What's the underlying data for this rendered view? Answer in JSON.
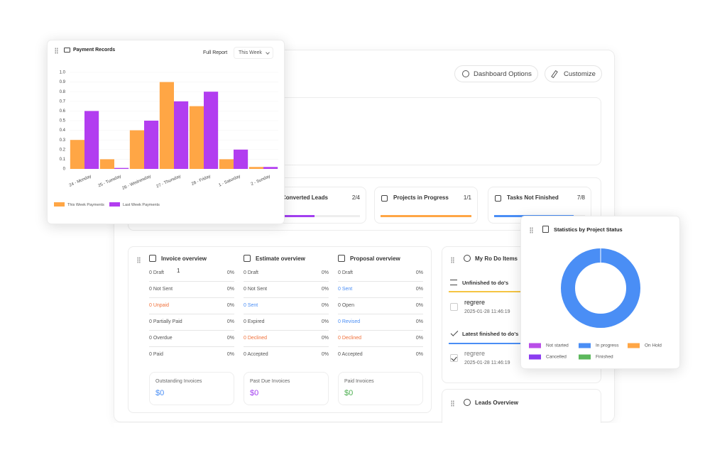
{
  "header": {
    "dashboard_options": "Dashboard Options",
    "customize": "Customize"
  },
  "stats": [
    {
      "label": "Converted Leads",
      "value": "2/4",
      "color": "#a23ff0"
    },
    {
      "label": "Projects in Progress",
      "value": "1/1",
      "color": "#ffa645"
    },
    {
      "label": "Tasks Not Finished",
      "value": "7/8",
      "color": "#4a8ef5"
    }
  ],
  "overviews": [
    {
      "title": "Invoice overview",
      "rows": [
        {
          "label": "0 Draft",
          "percent": "0%"
        },
        {
          "label": "0 Not Sent",
          "percent": "0%"
        },
        {
          "label": "0 Unpaid",
          "percent": "0%",
          "color": "#f0703a"
        },
        {
          "label": "0 Partially Paid",
          "percent": "0%"
        },
        {
          "label": "0 Overdue",
          "percent": "0%"
        },
        {
          "label": "0 Paid",
          "percent": "0%"
        }
      ]
    },
    {
      "title": "Estimate overview",
      "rows": [
        {
          "label": "0 Draft",
          "percent": "0%"
        },
        {
          "label": "0 Not Sent",
          "percent": "0%"
        },
        {
          "label": "0 Sent",
          "percent": "0%",
          "color": "#4a8ef5"
        },
        {
          "label": "0 Expired",
          "percent": "0%"
        },
        {
          "label": "0 Declined",
          "percent": "0%",
          "color": "#f0703a"
        },
        {
          "label": "0 Accepted",
          "percent": "0%"
        }
      ]
    },
    {
      "title": "Proposal overview",
      "rows": [
        {
          "label": "0 Draft",
          "percent": "0%"
        },
        {
          "label": "0 Sent",
          "percent": "0%",
          "color": "#4a8ef5"
        },
        {
          "label": "0 Open",
          "percent": "0%"
        },
        {
          "label": "0 Revised",
          "percent": "0%",
          "color": "#4a8ef5"
        },
        {
          "label": "0 Declined",
          "percent": "0%",
          "color": "#f0703a"
        },
        {
          "label": "0 Accepted",
          "percent": "0%"
        }
      ]
    }
  ],
  "stray_text": "1",
  "totals": [
    {
      "label": "Outstanding Invoices",
      "value": "$0",
      "color": "#4a8ef5"
    },
    {
      "label": "Past Due Invoices",
      "value": "$0",
      "color": "#a23ff0"
    },
    {
      "label": "Paid Invoices",
      "value": "$0",
      "color": "#4caf50"
    }
  ],
  "todo": {
    "title": "My Ro Do Items",
    "unfinished": "Unfinished to do's",
    "unfinished_items": [
      {
        "text": "regrere",
        "date": "2025-01-28 11:46:19"
      }
    ],
    "finished": "Latest finished to do's",
    "finished_items": [
      {
        "text": "regrere",
        "date": "2025-01-28 11:46:19"
      }
    ]
  },
  "leads": {
    "title": "Leads Overview"
  },
  "payment_card": {
    "full_report": "Full Report",
    "period": "This Week"
  },
  "chart_data": [
    {
      "type": "bar",
      "title": "Payment Records",
      "categories": [
        "24 - Monday",
        "25 - Tuesday",
        "26 - Wednesday",
        "27 - Thursday",
        "28 - Friday",
        "1 - Saturday",
        "2 - Sunday"
      ],
      "series": [
        {
          "name": "This Week Payments",
          "color": "#ffa645",
          "values": [
            0.3,
            0.1,
            0.4,
            0.9,
            0.65,
            0.1,
            0.02
          ]
        },
        {
          "name": "Last Week Payments",
          "color": "#b23df0",
          "values": [
            0.6,
            0.01,
            0.5,
            0.7,
            0.8,
            0.2,
            0.02
          ]
        }
      ],
      "ylim": [
        0,
        1
      ],
      "yticks": [
        0,
        0.1,
        0.2,
        0.3,
        0.4,
        0.5,
        0.6,
        0.7,
        0.8,
        0.9,
        {
          "value": 1,
          "label": "1.0"
        }
      ]
    },
    {
      "type": "donut",
      "title": "Statistics by Project Status",
      "categories": [
        "Not started",
        "In progress",
        "On Hold",
        "Cancelled",
        "Finished"
      ],
      "colors": [
        "#b94ee8",
        "#4a8ef5",
        "#ffa645",
        "#8b3cf0",
        "#5cb85c"
      ],
      "values": [
        0,
        1,
        0,
        0,
        0
      ]
    }
  ]
}
